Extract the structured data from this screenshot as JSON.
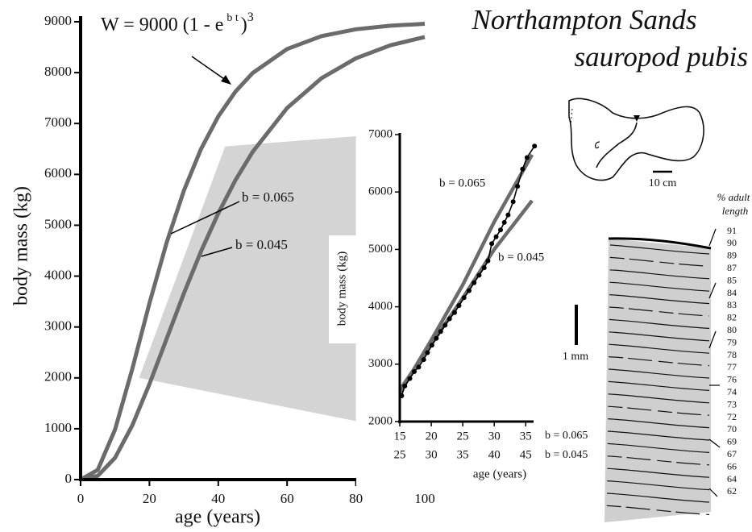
{
  "chart_data": [
    {
      "type": "line",
      "title": [
        "Northampton Sands",
        "sauropod pubis"
      ],
      "annotation": {
        "base": "W = 9000 (1 - e",
        "exponent": "b t",
        "close": ")",
        "power": "3"
      },
      "xlabel": "age (years)",
      "ylabel": "body mass  (kg)",
      "xlim": [
        0,
        100
      ],
      "ylim": [
        0,
        9000
      ],
      "xticks": [
        0,
        20,
        40,
        60,
        80,
        100
      ],
      "yticks": [
        0,
        1000,
        2000,
        3000,
        4000,
        5000,
        6000,
        7000,
        8000,
        9000
      ],
      "x": [
        0,
        5,
        10,
        15,
        20,
        25,
        30,
        35,
        40,
        45,
        50,
        60,
        70,
        80,
        90,
        100
      ],
      "series": [
        {
          "name": "b = 0.065",
          "color": "#6b6b6b",
          "values": [
            0,
            192,
            983,
            2174,
            3465,
            4662,
            5679,
            6500,
            7140,
            7627,
            7993,
            8465,
            8718,
            8852,
            8922,
            8960
          ]
        },
        {
          "name": "b = 0.045",
          "color": "#6b6b6b",
          "values": [
            0,
            74,
            428,
            1064,
            1877,
            2772,
            3659,
            4488,
            5234,
            5886,
            6444,
            7305,
            7891,
            8283,
            8538,
            8700
          ]
        }
      ],
      "shaded_region": {
        "color": "#d4d4d4",
        "x": [
          17,
          42,
          80,
          80
        ],
        "y": [
          2000,
          6550,
          6750,
          1150
        ]
      }
    },
    {
      "type": "line",
      "xlabel": "age (years)",
      "ylabel": "body mass  (kg)",
      "xlim": [
        15,
        36.5
      ],
      "x2lim": [
        25,
        46.5
      ],
      "ylim": [
        2000,
        7000
      ],
      "xticks": [
        15,
        20,
        25,
        30,
        35
      ],
      "x2ticks": [
        25,
        30,
        35,
        40,
        45
      ],
      "yticks": [
        2000,
        3000,
        4000,
        5000,
        6000,
        7000
      ],
      "series": [
        {
          "name": "b = 0.065",
          "color": "#6b6b6b",
          "x": [
            15,
            20,
            25,
            30,
            36
          ],
          "values": [
            2500,
            3420,
            4380,
            5480,
            6650
          ]
        },
        {
          "name": "b = 0.045",
          "color": "#6b6b6b",
          "x": [
            15,
            20,
            25,
            30,
            36
          ],
          "values": [
            2550,
            3350,
            4150,
            5000,
            5850
          ]
        },
        {
          "color": "#000000",
          "markers": true,
          "x": [
            15.3,
            15.8,
            16.6,
            17.3,
            18,
            18.8,
            19.4,
            20.1,
            20.8,
            21.5,
            22.2,
            22.9,
            23.7,
            24.4,
            25.2,
            26,
            26.8,
            27.6,
            28.4,
            29,
            29.6,
            30.3,
            31,
            31.6,
            32.2,
            33,
            33.7,
            34.5,
            35.2,
            36.4
          ],
          "values": [
            2450,
            2620,
            2750,
            2870,
            2950,
            3080,
            3200,
            3330,
            3450,
            3570,
            3680,
            3790,
            3900,
            4020,
            4160,
            4280,
            4420,
            4550,
            4680,
            4800,
            5100,
            5220,
            5340,
            5470,
            5600,
            5830,
            6100,
            6400,
            6600,
            6800
          ]
        }
      ]
    }
  ],
  "pubis": {
    "scale": "10 cm"
  },
  "histology": {
    "header": [
      "% adult",
      "length"
    ],
    "scale": "1 mm",
    "labels": [
      91,
      90,
      89,
      87,
      85,
      84,
      83,
      82,
      80,
      79,
      78,
      77,
      76,
      74,
      73,
      72,
      70,
      69,
      67,
      66,
      64,
      62
    ],
    "markers": [
      "b = 0.065",
      "b = 0.045"
    ]
  }
}
